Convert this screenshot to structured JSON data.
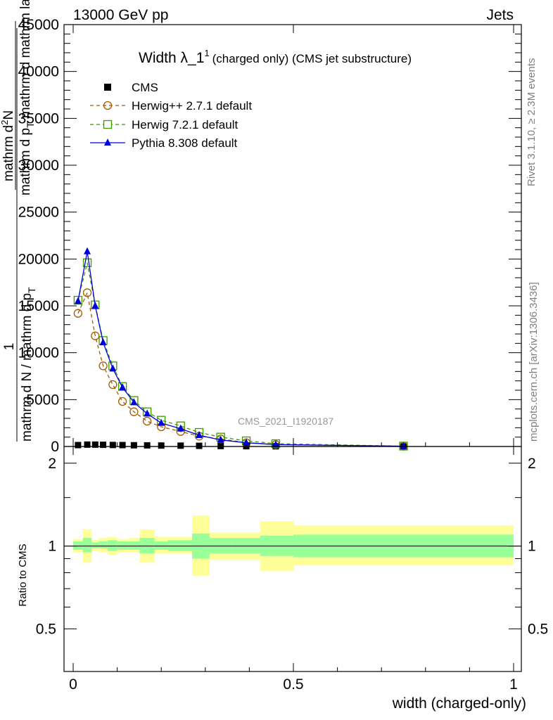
{
  "header": {
    "left": "13000 GeV pp",
    "right": "Jets"
  },
  "side_labels": {
    "rivet": "Rivet 3.1.10, ≥ 2.3M events",
    "mcplots": "mcplots.cern.ch [arXiv:1306.3436]"
  },
  "watermark": "CMS_2021_I1920187",
  "chart_data": {
    "type": "line",
    "title": "Width λ_1",
    "title_superscript": "1",
    "title_note": "(charged only) (CMS jet substructure)",
    "ylabel_pieces": {
      "one": "1",
      "den_lead": "mathrm d N",
      "den_tail": " / mathrm d p",
      "den_sub": "T",
      "num1": "mathrm d",
      "num1_sup": "2",
      "num1_tail": "N",
      "num2_lead": "mathrm d p",
      "num2_sub": "T",
      "num2_tail": " mathrm d mathrm lambda"
    },
    "ratio_ylabel": "Ratio to CMS",
    "xlabel": "width (charged-only)",
    "xlim": [
      0,
      1
    ],
    "ylim": [
      0,
      45000
    ],
    "ratio_ylim": [
      0.35,
      2.3
    ],
    "x_ticks": [
      0,
      0.5,
      1
    ],
    "x_tick_labels": [
      "0",
      "0.5",
      "1"
    ],
    "y_ticks": [
      0,
      5000,
      10000,
      15000,
      20000,
      25000,
      30000,
      35000,
      40000,
      45000
    ],
    "y_tick_labels": [
      "0",
      "5000",
      "10000",
      "15000",
      "20000",
      "25000",
      "30000",
      "35000",
      "40000",
      "45000"
    ],
    "ratio_ticks": [
      0.5,
      1,
      2
    ],
    "ratio_tick_labels": [
      "0.5",
      "1",
      "2"
    ],
    "x": [
      0.011,
      0.032,
      0.05,
      0.068,
      0.09,
      0.112,
      0.138,
      0.168,
      0.2,
      0.244,
      0.286,
      0.335,
      0.393,
      0.46,
      0.75
    ],
    "series": [
      {
        "name": "CMS",
        "color": "#000000",
        "marker": "square",
        "values": [
          150,
          200,
          200,
          180,
          160,
          150,
          130,
          120,
          100,
          90,
          70,
          50,
          30,
          20,
          5
        ]
      },
      {
        "name": "Herwig++ 2.7.1 default",
        "color": "#a65a00",
        "marker": "circle-open",
        "dash": "5,4",
        "values": [
          14200,
          16400,
          11800,
          8600,
          6600,
          4800,
          3700,
          2700,
          2100,
          1600,
          1100,
          800,
          400,
          200,
          30
        ]
      },
      {
        "name": "Herwig 7.2.1 default",
        "color": "#3a9a00",
        "marker": "square-open",
        "dash": "5,4",
        "values": [
          15600,
          19600,
          15100,
          11300,
          8600,
          6400,
          4900,
          3700,
          2800,
          2200,
          1500,
          1000,
          600,
          300,
          40
        ]
      },
      {
        "name": "Pythia 8.308 default",
        "color": "#0000dd",
        "marker": "triangle",
        "values": [
          15500,
          20800,
          15000,
          11100,
          8300,
          6300,
          4700,
          3500,
          2500,
          1900,
          1200,
          700,
          400,
          200,
          30
        ]
      }
    ],
    "ratio_bands": {
      "bins": [
        0,
        0.022,
        0.042,
        0.058,
        0.078,
        0.1,
        0.125,
        0.151,
        0.185,
        0.215,
        0.27,
        0.31,
        0.36,
        0.425,
        0.5,
        1.0
      ],
      "inner": [
        [
          0.97,
          1.04
        ],
        [
          0.95,
          1.07
        ],
        [
          0.98,
          1.03
        ],
        [
          0.98,
          1.04
        ],
        [
          0.96,
          1.05
        ],
        [
          0.97,
          1.04
        ],
        [
          0.97,
          1.04
        ],
        [
          0.94,
          1.07
        ],
        [
          0.97,
          1.04
        ],
        [
          0.96,
          1.05
        ],
        [
          0.9,
          1.11
        ],
        [
          0.94,
          1.07
        ],
        [
          0.94,
          1.07
        ],
        [
          0.92,
          1.09
        ],
        [
          0.91,
          1.1
        ]
      ],
      "outer": [
        [
          0.95,
          1.06
        ],
        [
          0.87,
          1.15
        ],
        [
          0.96,
          1.05
        ],
        [
          0.95,
          1.07
        ],
        [
          0.93,
          1.08
        ],
        [
          0.95,
          1.06
        ],
        [
          0.95,
          1.07
        ],
        [
          0.87,
          1.15
        ],
        [
          0.94,
          1.08
        ],
        [
          0.94,
          1.08
        ],
        [
          0.78,
          1.29
        ],
        [
          0.89,
          1.12
        ],
        [
          0.89,
          1.12
        ],
        [
          0.81,
          1.23
        ],
        [
          0.85,
          1.19
        ]
      ]
    }
  }
}
